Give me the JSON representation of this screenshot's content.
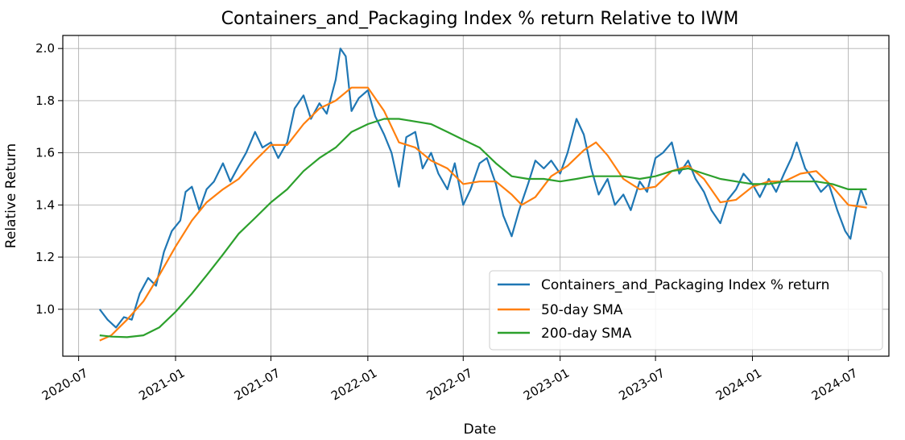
{
  "chart_data": {
    "type": "line",
    "title": "Containers_and_Packaging Index % return Relative to IWM",
    "xlabel": "Date",
    "ylabel": "Relative Return",
    "xlim": [
      "2020-06-01",
      "2024-09-16"
    ],
    "ylim": [
      0.82,
      2.05
    ],
    "grid": true,
    "legend_position": "lower-right",
    "x_ticks": [
      {
        "date": "2020-07-01",
        "label": "2020-07"
      },
      {
        "date": "2021-01-01",
        "label": "2021-01"
      },
      {
        "date": "2021-07-01",
        "label": "2021-07"
      },
      {
        "date": "2022-01-01",
        "label": "2022-01"
      },
      {
        "date": "2022-07-01",
        "label": "2022-07"
      },
      {
        "date": "2023-01-01",
        "label": "2023-01"
      },
      {
        "date": "2023-07-01",
        "label": "2023-07"
      },
      {
        "date": "2024-01-01",
        "label": "2024-01"
      },
      {
        "date": "2024-07-01",
        "label": "2024-07"
      }
    ],
    "y_ticks": [
      {
        "value": 1.0,
        "label": "1.0"
      },
      {
        "value": 1.2,
        "label": "1.2"
      },
      {
        "value": 1.4,
        "label": "1.4"
      },
      {
        "value": 1.6,
        "label": "1.6"
      },
      {
        "value": 1.8,
        "label": "1.8"
      },
      {
        "value": 2.0,
        "label": "2.0"
      }
    ],
    "series": [
      {
        "name": "Containers_and_Packaging Index % return",
        "color": "#1f77b4",
        "points": [
          [
            "2020-08-10",
            1.0
          ],
          [
            "2020-08-25",
            0.96
          ],
          [
            "2020-09-10",
            0.93
          ],
          [
            "2020-09-25",
            0.97
          ],
          [
            "2020-10-10",
            0.96
          ],
          [
            "2020-10-25",
            1.06
          ],
          [
            "2020-11-10",
            1.12
          ],
          [
            "2020-11-25",
            1.09
          ],
          [
            "2020-12-10",
            1.22
          ],
          [
            "2020-12-25",
            1.3
          ],
          [
            "2021-01-10",
            1.34
          ],
          [
            "2021-01-20",
            1.45
          ],
          [
            "2021-02-01",
            1.47
          ],
          [
            "2021-02-15",
            1.38
          ],
          [
            "2021-03-01",
            1.46
          ],
          [
            "2021-03-15",
            1.49
          ],
          [
            "2021-04-01",
            1.56
          ],
          [
            "2021-04-15",
            1.49
          ],
          [
            "2021-05-01",
            1.55
          ],
          [
            "2021-05-15",
            1.6
          ],
          [
            "2021-06-01",
            1.68
          ],
          [
            "2021-06-15",
            1.62
          ],
          [
            "2021-07-01",
            1.64
          ],
          [
            "2021-07-15",
            1.58
          ],
          [
            "2021-08-01",
            1.64
          ],
          [
            "2021-08-15",
            1.77
          ],
          [
            "2021-09-01",
            1.82
          ],
          [
            "2021-09-15",
            1.73
          ],
          [
            "2021-10-01",
            1.79
          ],
          [
            "2021-10-15",
            1.75
          ],
          [
            "2021-11-01",
            1.88
          ],
          [
            "2021-11-10",
            2.0
          ],
          [
            "2021-11-20",
            1.97
          ],
          [
            "2021-12-01",
            1.76
          ],
          [
            "2021-12-15",
            1.81
          ],
          [
            "2022-01-01",
            1.84
          ],
          [
            "2022-01-15",
            1.74
          ],
          [
            "2022-02-01",
            1.67
          ],
          [
            "2022-02-15",
            1.6
          ],
          [
            "2022-03-01",
            1.47
          ],
          [
            "2022-03-15",
            1.66
          ],
          [
            "2022-04-01",
            1.68
          ],
          [
            "2022-04-15",
            1.54
          ],
          [
            "2022-05-01",
            1.6
          ],
          [
            "2022-05-15",
            1.52
          ],
          [
            "2022-06-01",
            1.46
          ],
          [
            "2022-06-15",
            1.56
          ],
          [
            "2022-07-01",
            1.4
          ],
          [
            "2022-07-15",
            1.46
          ],
          [
            "2022-08-01",
            1.56
          ],
          [
            "2022-08-15",
            1.58
          ],
          [
            "2022-09-01",
            1.48
          ],
          [
            "2022-09-15",
            1.36
          ],
          [
            "2022-10-01",
            1.28
          ],
          [
            "2022-10-15",
            1.38
          ],
          [
            "2022-11-01",
            1.48
          ],
          [
            "2022-11-15",
            1.57
          ],
          [
            "2022-12-01",
            1.54
          ],
          [
            "2022-12-15",
            1.57
          ],
          [
            "2023-01-01",
            1.52
          ],
          [
            "2023-01-15",
            1.6
          ],
          [
            "2023-02-01",
            1.73
          ],
          [
            "2023-02-15",
            1.67
          ],
          [
            "2023-03-01",
            1.54
          ],
          [
            "2023-03-15",
            1.44
          ],
          [
            "2023-04-01",
            1.5
          ],
          [
            "2023-04-15",
            1.4
          ],
          [
            "2023-05-01",
            1.44
          ],
          [
            "2023-05-15",
            1.38
          ],
          [
            "2023-06-01",
            1.49
          ],
          [
            "2023-06-15",
            1.45
          ],
          [
            "2023-07-01",
            1.58
          ],
          [
            "2023-07-15",
            1.6
          ],
          [
            "2023-08-01",
            1.64
          ],
          [
            "2023-08-15",
            1.52
          ],
          [
            "2023-09-01",
            1.57
          ],
          [
            "2023-09-15",
            1.5
          ],
          [
            "2023-10-01",
            1.45
          ],
          [
            "2023-10-15",
            1.38
          ],
          [
            "2023-11-01",
            1.33
          ],
          [
            "2023-11-15",
            1.42
          ],
          [
            "2023-12-01",
            1.46
          ],
          [
            "2023-12-15",
            1.52
          ],
          [
            "2024-01-01",
            1.48
          ],
          [
            "2024-01-15",
            1.43
          ],
          [
            "2024-02-01",
            1.5
          ],
          [
            "2024-02-15",
            1.45
          ],
          [
            "2024-03-01",
            1.52
          ],
          [
            "2024-03-15",
            1.58
          ],
          [
            "2024-03-25",
            1.64
          ],
          [
            "2024-04-10",
            1.54
          ],
          [
            "2024-04-25",
            1.5
          ],
          [
            "2024-05-10",
            1.45
          ],
          [
            "2024-05-25",
            1.48
          ],
          [
            "2024-06-10",
            1.38
          ],
          [
            "2024-06-25",
            1.3
          ],
          [
            "2024-07-05",
            1.27
          ],
          [
            "2024-07-15",
            1.38
          ],
          [
            "2024-07-25",
            1.46
          ],
          [
            "2024-08-05",
            1.4
          ]
        ]
      },
      {
        "name": "50-day SMA",
        "color": "#ff7f0e",
        "points": [
          [
            "2020-08-10",
            0.88
          ],
          [
            "2020-09-01",
            0.9
          ],
          [
            "2020-10-01",
            0.96
          ],
          [
            "2020-11-01",
            1.03
          ],
          [
            "2020-12-01",
            1.13
          ],
          [
            "2021-01-01",
            1.24
          ],
          [
            "2021-02-01",
            1.34
          ],
          [
            "2021-03-01",
            1.41
          ],
          [
            "2021-04-01",
            1.46
          ],
          [
            "2021-05-01",
            1.5
          ],
          [
            "2021-06-01",
            1.57
          ],
          [
            "2021-07-01",
            1.63
          ],
          [
            "2021-08-01",
            1.63
          ],
          [
            "2021-09-01",
            1.71
          ],
          [
            "2021-10-01",
            1.77
          ],
          [
            "2021-11-01",
            1.8
          ],
          [
            "2021-12-01",
            1.85
          ],
          [
            "2022-01-01",
            1.85
          ],
          [
            "2022-02-01",
            1.76
          ],
          [
            "2022-03-01",
            1.64
          ],
          [
            "2022-04-01",
            1.62
          ],
          [
            "2022-05-01",
            1.57
          ],
          [
            "2022-06-01",
            1.54
          ],
          [
            "2022-07-01",
            1.48
          ],
          [
            "2022-08-01",
            1.49
          ],
          [
            "2022-09-01",
            1.49
          ],
          [
            "2022-10-01",
            1.44
          ],
          [
            "2022-10-20",
            1.4
          ],
          [
            "2022-11-15",
            1.43
          ],
          [
            "2022-12-15",
            1.51
          ],
          [
            "2023-01-15",
            1.55
          ],
          [
            "2023-02-15",
            1.61
          ],
          [
            "2023-03-10",
            1.64
          ],
          [
            "2023-04-01",
            1.59
          ],
          [
            "2023-05-01",
            1.5
          ],
          [
            "2023-06-01",
            1.46
          ],
          [
            "2023-07-01",
            1.47
          ],
          [
            "2023-08-01",
            1.53
          ],
          [
            "2023-09-01",
            1.55
          ],
          [
            "2023-10-01",
            1.5
          ],
          [
            "2023-11-01",
            1.41
          ],
          [
            "2023-12-01",
            1.42
          ],
          [
            "2024-01-01",
            1.47
          ],
          [
            "2024-02-01",
            1.49
          ],
          [
            "2024-03-01",
            1.49
          ],
          [
            "2024-04-01",
            1.52
          ],
          [
            "2024-05-01",
            1.53
          ],
          [
            "2024-06-01",
            1.47
          ],
          [
            "2024-07-01",
            1.4
          ],
          [
            "2024-08-05",
            1.39
          ]
        ]
      },
      {
        "name": "200-day SMA",
        "color": "#2ca02c",
        "points": [
          [
            "2020-08-10",
            0.9
          ],
          [
            "2020-09-01",
            0.895
          ],
          [
            "2020-10-01",
            0.893
          ],
          [
            "2020-11-01",
            0.9
          ],
          [
            "2020-12-01",
            0.93
          ],
          [
            "2021-01-01",
            0.99
          ],
          [
            "2021-02-01",
            1.06
          ],
          [
            "2021-03-01",
            1.13
          ],
          [
            "2021-04-01",
            1.21
          ],
          [
            "2021-05-01",
            1.29
          ],
          [
            "2021-06-01",
            1.35
          ],
          [
            "2021-07-01",
            1.41
          ],
          [
            "2021-08-01",
            1.46
          ],
          [
            "2021-09-01",
            1.53
          ],
          [
            "2021-10-01",
            1.58
          ],
          [
            "2021-11-01",
            1.62
          ],
          [
            "2021-12-01",
            1.68
          ],
          [
            "2022-01-01",
            1.71
          ],
          [
            "2022-02-01",
            1.73
          ],
          [
            "2022-03-01",
            1.73
          ],
          [
            "2022-04-01",
            1.72
          ],
          [
            "2022-05-01",
            1.71
          ],
          [
            "2022-06-01",
            1.68
          ],
          [
            "2022-07-01",
            1.65
          ],
          [
            "2022-08-01",
            1.62
          ],
          [
            "2022-09-01",
            1.56
          ],
          [
            "2022-10-01",
            1.51
          ],
          [
            "2022-11-01",
            1.5
          ],
          [
            "2022-12-01",
            1.5
          ],
          [
            "2023-01-01",
            1.49
          ],
          [
            "2023-02-01",
            1.5
          ],
          [
            "2023-03-01",
            1.51
          ],
          [
            "2023-04-01",
            1.51
          ],
          [
            "2023-05-01",
            1.51
          ],
          [
            "2023-06-01",
            1.5
          ],
          [
            "2023-07-01",
            1.51
          ],
          [
            "2023-08-01",
            1.53
          ],
          [
            "2023-09-01",
            1.54
          ],
          [
            "2023-10-01",
            1.52
          ],
          [
            "2023-11-01",
            1.5
          ],
          [
            "2023-12-01",
            1.49
          ],
          [
            "2024-01-01",
            1.48
          ],
          [
            "2024-02-01",
            1.48
          ],
          [
            "2024-03-01",
            1.49
          ],
          [
            "2024-04-01",
            1.49
          ],
          [
            "2024-05-01",
            1.49
          ],
          [
            "2024-06-01",
            1.48
          ],
          [
            "2024-07-01",
            1.46
          ],
          [
            "2024-08-05",
            1.46
          ]
        ]
      }
    ]
  }
}
